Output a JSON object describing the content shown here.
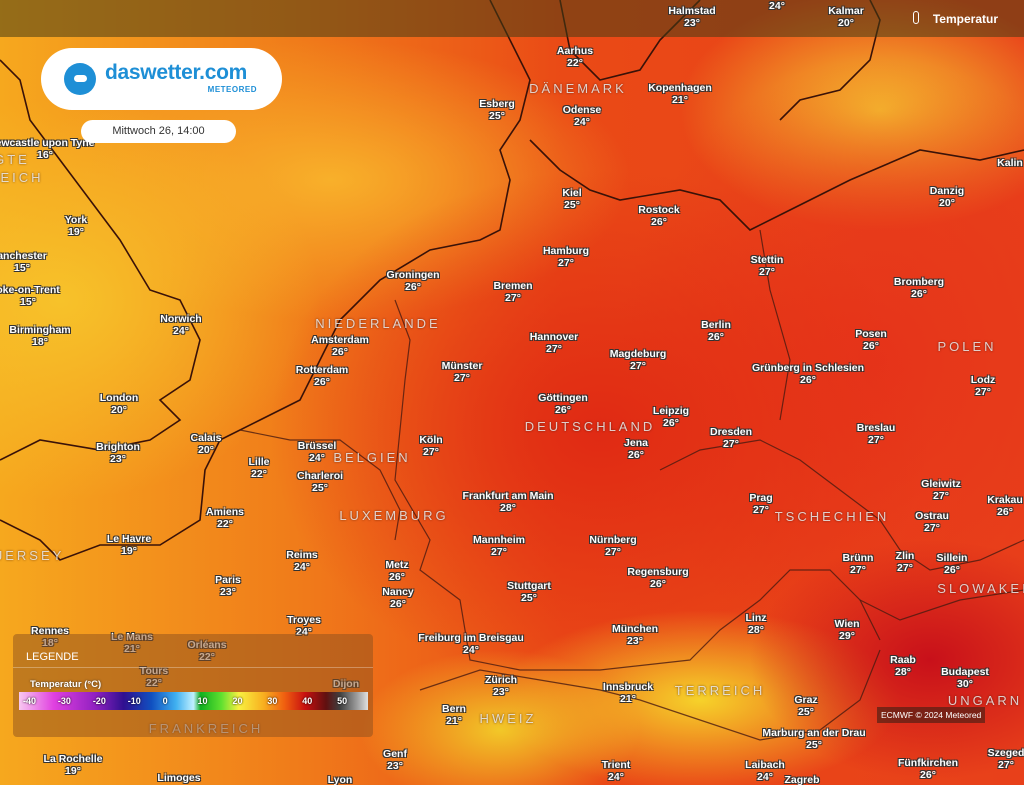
{
  "brand": {
    "name": "daswetter.com",
    "sub": "METEORED"
  },
  "datetime": "Mittwoch 26, 14:00",
  "layer": {
    "label": "Temperatur",
    "icon": "thermometer-icon"
  },
  "legend": {
    "title": "LEGENDE",
    "unit": "Temperatur (°C)",
    "ticks": [
      "-40",
      "-30",
      "-20",
      "-10",
      "0",
      "10",
      "20",
      "30",
      "40",
      "50"
    ]
  },
  "credit": "ECMWF © 2024 Meteored",
  "countries": [
    "DÄNEMARK",
    "NIEDERLANDE",
    "BELGIEN",
    "LUXEMBURG",
    "DEUTSCHLAND",
    "TSCHECHIEN",
    "POLEN",
    "SLOWAKEI",
    "TERREICH",
    "HWEIZ",
    "UNGARN",
    "FRANKREICH",
    "GTE",
    "EICH",
    "JERSEY"
  ],
  "cities": [
    {
      "name": "Halmstad",
      "temp": "23°"
    },
    {
      "name": "",
      "temp": "24°"
    },
    {
      "name": "Kalmar",
      "temp": "20°"
    },
    {
      "name": "Aarhus",
      "temp": "22°"
    },
    {
      "name": "Esberg",
      "temp": "25°"
    },
    {
      "name": "Odense",
      "temp": "24°"
    },
    {
      "name": "Kopenhagen",
      "temp": "21°"
    },
    {
      "name": "ewcastle upon Tyne",
      "temp": "16°"
    },
    {
      "name": "York",
      "temp": "19°"
    },
    {
      "name": "anchester",
      "temp": "15°"
    },
    {
      "name": "oke-on-Trent",
      "temp": "15°"
    },
    {
      "name": "Birmingham",
      "temp": "18°"
    },
    {
      "name": "Norwich",
      "temp": "24°"
    },
    {
      "name": "London",
      "temp": "20°"
    },
    {
      "name": "Brighton",
      "temp": "23°"
    },
    {
      "name": "Calais",
      "temp": "20°"
    },
    {
      "name": "Lille",
      "temp": "22°"
    },
    {
      "name": "Brüssel",
      "temp": "24°"
    },
    {
      "name": "Charleroi",
      "temp": "25°"
    },
    {
      "name": "Amiens",
      "temp": "22°"
    },
    {
      "name": "Le Havre",
      "temp": "19°"
    },
    {
      "name": "Reims",
      "temp": "24°"
    },
    {
      "name": "Paris",
      "temp": "23°"
    },
    {
      "name": "Troyes",
      "temp": "24°"
    },
    {
      "name": "Rennes",
      "temp": "18°"
    },
    {
      "name": "Le Mans",
      "temp": "21°"
    },
    {
      "name": "Orléans",
      "temp": "22°"
    },
    {
      "name": "Tours",
      "temp": "22°"
    },
    {
      "name": "Dijon",
      "temp": ""
    },
    {
      "name": "La Rochelle",
      "temp": "19°"
    },
    {
      "name": "Limoges",
      "temp": ""
    },
    {
      "name": "Lyon",
      "temp": ""
    },
    {
      "name": "Kiel",
      "temp": "25°"
    },
    {
      "name": "Rostock",
      "temp": "26°"
    },
    {
      "name": "Danzig",
      "temp": "20°"
    },
    {
      "name": "Kalin",
      "temp": ""
    },
    {
      "name": "Hamburg",
      "temp": "27°"
    },
    {
      "name": "Groningen",
      "temp": "26°"
    },
    {
      "name": "Bremen",
      "temp": "27°"
    },
    {
      "name": "Stettin",
      "temp": "27°"
    },
    {
      "name": "Bromberg",
      "temp": "26°"
    },
    {
      "name": "Amsterdam",
      "temp": "26°"
    },
    {
      "name": "Hannover",
      "temp": "27°"
    },
    {
      "name": "Berlin",
      "temp": "26°"
    },
    {
      "name": "Posen",
      "temp": "26°"
    },
    {
      "name": "Rotterdam",
      "temp": "26°"
    },
    {
      "name": "Münster",
      "temp": "27°"
    },
    {
      "name": "Magdeburg",
      "temp": "27°"
    },
    {
      "name": "Grünberg in Schlesien",
      "temp": "26°"
    },
    {
      "name": "Lodz",
      "temp": "27°"
    },
    {
      "name": "Göttingen",
      "temp": "26°"
    },
    {
      "name": "Leipzig",
      "temp": "26°"
    },
    {
      "name": "Köln",
      "temp": "27°"
    },
    {
      "name": "Jena",
      "temp": "26°"
    },
    {
      "name": "Dresden",
      "temp": "27°"
    },
    {
      "name": "Breslau",
      "temp": "27°"
    },
    {
      "name": "Frankfurt am Main",
      "temp": "28°"
    },
    {
      "name": "Prag",
      "temp": "27°"
    },
    {
      "name": "Gleiwitz",
      "temp": "27°"
    },
    {
      "name": "Krakau",
      "temp": "26°"
    },
    {
      "name": "Mannheim",
      "temp": "27°"
    },
    {
      "name": "Nürnberg",
      "temp": "27°"
    },
    {
      "name": "Ostrau",
      "temp": "27°"
    },
    {
      "name": "Metz",
      "temp": "26°"
    },
    {
      "name": "Nancy",
      "temp": "26°"
    },
    {
      "name": "Stuttgart",
      "temp": "25°"
    },
    {
      "name": "Regensburg",
      "temp": "26°"
    },
    {
      "name": "Brünn",
      "temp": "27°"
    },
    {
      "name": "Zlin",
      "temp": "27°"
    },
    {
      "name": "Sillein",
      "temp": "26°"
    },
    {
      "name": "Freiburg im Breisgau",
      "temp": "24°"
    },
    {
      "name": "München",
      "temp": "23°"
    },
    {
      "name": "Linz",
      "temp": "28°"
    },
    {
      "name": "Wien",
      "temp": "29°"
    },
    {
      "name": "Raab",
      "temp": "28°"
    },
    {
      "name": "Budapest",
      "temp": "30°"
    },
    {
      "name": "Zürich",
      "temp": "23°"
    },
    {
      "name": "Innsbruck",
      "temp": "21°"
    },
    {
      "name": "Bern",
      "temp": "21°"
    },
    {
      "name": "Graz",
      "temp": "25°"
    },
    {
      "name": "Marburg an der Drau",
      "temp": "25°"
    },
    {
      "name": "Genf",
      "temp": "23°"
    },
    {
      "name": "Trient",
      "temp": "24°"
    },
    {
      "name": "Laibach",
      "temp": "24°"
    },
    {
      "name": "Zagreb",
      "temp": ""
    },
    {
      "name": "Fünfkirchen",
      "temp": "26°"
    },
    {
      "name": "Szeged",
      "temp": "27°"
    }
  ]
}
